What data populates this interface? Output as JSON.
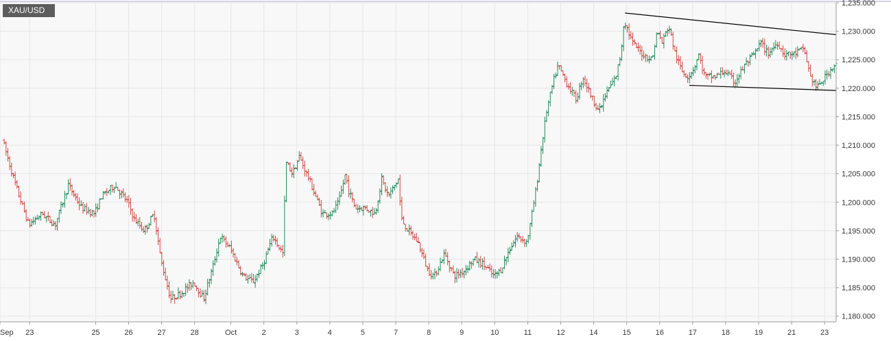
{
  "symbol": "XAU/USD",
  "colors": {
    "background": "#ffffff",
    "plot_area": "#f8f8f8",
    "grid": "#e6e6e6",
    "axis": "#9a9a9a",
    "top_border": "#a9a1c7",
    "bull": "#1f8a5b",
    "bear": "#d0453f",
    "trendline": "#000000",
    "badge": "#5d5d5d"
  },
  "chart_data": {
    "type": "ohlc",
    "title": "XAU/USD",
    "xlabel": "",
    "ylabel": "",
    "ylim": [
      1179,
      1235
    ],
    "y_ticks": [
      "1,180.000",
      "1,185.000",
      "1,190.000",
      "1,195.000",
      "1,200.000",
      "1,205.000",
      "1,210.000",
      "1,215.000",
      "1,220.000",
      "1,225.000",
      "1,230.000",
      "1,235.000"
    ],
    "y_tick_values": [
      1180,
      1185,
      1190,
      1195,
      1200,
      1205,
      1210,
      1215,
      1220,
      1225,
      1230,
      1235
    ],
    "x_ticks": [
      {
        "label": "Sep",
        "t": -0.1
      },
      {
        "label": "23",
        "t": 0.8
      },
      {
        "label": "25",
        "t": 2.8
      },
      {
        "label": "26",
        "t": 3.8
      },
      {
        "label": "27",
        "t": 4.8
      },
      {
        "label": "28",
        "t": 5.8
      },
      {
        "label": "Oct",
        "t": 6.9
      },
      {
        "label": "2",
        "t": 7.9
      },
      {
        "label": "3",
        "t": 8.9
      },
      {
        "label": "4",
        "t": 9.9
      },
      {
        "label": "5",
        "t": 10.9
      },
      {
        "label": "7",
        "t": 11.9
      },
      {
        "label": "8",
        "t": 12.9
      },
      {
        "label": "9",
        "t": 13.9
      },
      {
        "label": "10",
        "t": 14.9
      },
      {
        "label": "11",
        "t": 15.9
      },
      {
        "label": "12",
        "t": 16.9
      },
      {
        "label": "14",
        "t": 17.9
      },
      {
        "label": "15",
        "t": 18.9
      },
      {
        "label": "16",
        "t": 19.9
      },
      {
        "label": "17",
        "t": 20.9
      },
      {
        "label": "18",
        "t": 21.9
      },
      {
        "label": "19",
        "t": 22.9
      },
      {
        "label": "21",
        "t": 23.9
      },
      {
        "label": "23",
        "t": 24.9
      }
    ],
    "x_range": [
      -0.1,
      25.25
    ],
    "bars_per_day": 18,
    "path": [
      [
        0.0,
        1211
      ],
      [
        0.4,
        1203
      ],
      [
        0.8,
        1196
      ],
      [
        1.2,
        1198
      ],
      [
        1.6,
        1196
      ],
      [
        2.0,
        1203
      ],
      [
        2.4,
        1199
      ],
      [
        2.8,
        1198
      ],
      [
        3.0,
        1201
      ],
      [
        3.4,
        1203
      ],
      [
        3.8,
        1200
      ],
      [
        4.0,
        1197
      ],
      [
        4.3,
        1195
      ],
      [
        4.6,
        1198
      ],
      [
        4.8,
        1190
      ],
      [
        5.1,
        1183
      ],
      [
        5.4,
        1184
      ],
      [
        5.8,
        1186
      ],
      [
        6.1,
        1183
      ],
      [
        6.4,
        1189
      ],
      [
        6.6,
        1194
      ],
      [
        6.9,
        1192
      ],
      [
        7.3,
        1187
      ],
      [
        7.6,
        1186
      ],
      [
        7.9,
        1189
      ],
      [
        8.2,
        1194
      ],
      [
        8.5,
        1191
      ],
      [
        8.6,
        1207
      ],
      [
        8.8,
        1205
      ],
      [
        9.0,
        1208
      ],
      [
        9.3,
        1204
      ],
      [
        9.5,
        1201
      ],
      [
        9.7,
        1198
      ],
      [
        10.0,
        1198
      ],
      [
        10.2,
        1200
      ],
      [
        10.4,
        1205
      ],
      [
        10.5,
        1202
      ],
      [
        10.7,
        1199
      ],
      [
        11.0,
        1199
      ],
      [
        11.3,
        1198
      ],
      [
        11.5,
        1204
      ],
      [
        11.7,
        1201
      ],
      [
        12.0,
        1204
      ],
      [
        12.1,
        1197
      ],
      [
        12.3,
        1195
      ],
      [
        12.6,
        1193
      ],
      [
        12.9,
        1188
      ],
      [
        13.1,
        1187
      ],
      [
        13.4,
        1191
      ],
      [
        13.7,
        1187
      ],
      [
        14.0,
        1188
      ],
      [
        14.3,
        1190
      ],
      [
        14.6,
        1189
      ],
      [
        14.9,
        1187
      ],
      [
        15.1,
        1188
      ],
      [
        15.4,
        1192
      ],
      [
        15.6,
        1194
      ],
      [
        15.9,
        1193
      ],
      [
        16.0,
        1196
      ],
      [
        16.2,
        1203
      ],
      [
        16.35,
        1210
      ],
      [
        16.5,
        1216
      ],
      [
        16.7,
        1221
      ],
      [
        16.85,
        1224
      ],
      [
        17.1,
        1221
      ],
      [
        17.4,
        1218
      ],
      [
        17.6,
        1222
      ],
      [
        17.9,
        1218
      ],
      [
        18.1,
        1216
      ],
      [
        18.3,
        1219
      ],
      [
        18.6,
        1222
      ],
      [
        18.75,
        1226
      ],
      [
        18.85,
        1232
      ],
      [
        19.1,
        1228
      ],
      [
        19.4,
        1226
      ],
      [
        19.7,
        1225
      ],
      [
        19.85,
        1230
      ],
      [
        20.0,
        1228
      ],
      [
        20.2,
        1231
      ],
      [
        20.4,
        1226
      ],
      [
        20.6,
        1223
      ],
      [
        20.8,
        1222
      ],
      [
        21.0,
        1224
      ],
      [
        21.1,
        1226
      ],
      [
        21.3,
        1222
      ],
      [
        21.6,
        1222
      ],
      [
        21.9,
        1223
      ],
      [
        22.2,
        1221
      ],
      [
        22.5,
        1224
      ],
      [
        22.8,
        1226
      ],
      [
        23.0,
        1228
      ],
      [
        23.2,
        1226
      ],
      [
        23.5,
        1228
      ],
      [
        23.7,
        1226
      ],
      [
        24.0,
        1226
      ],
      [
        24.3,
        1227
      ],
      [
        24.5,
        1222
      ],
      [
        24.7,
        1220
      ],
      [
        24.95,
        1222
      ],
      [
        25.2,
        1224
      ]
    ],
    "trendlines": [
      {
        "t1": 18.85,
        "p1": 1233.2,
        "t2": 25.25,
        "p2": 1229.4
      },
      {
        "t1": 20.8,
        "p1": 1220.5,
        "t2": 25.25,
        "p2": 1219.6
      }
    ]
  }
}
